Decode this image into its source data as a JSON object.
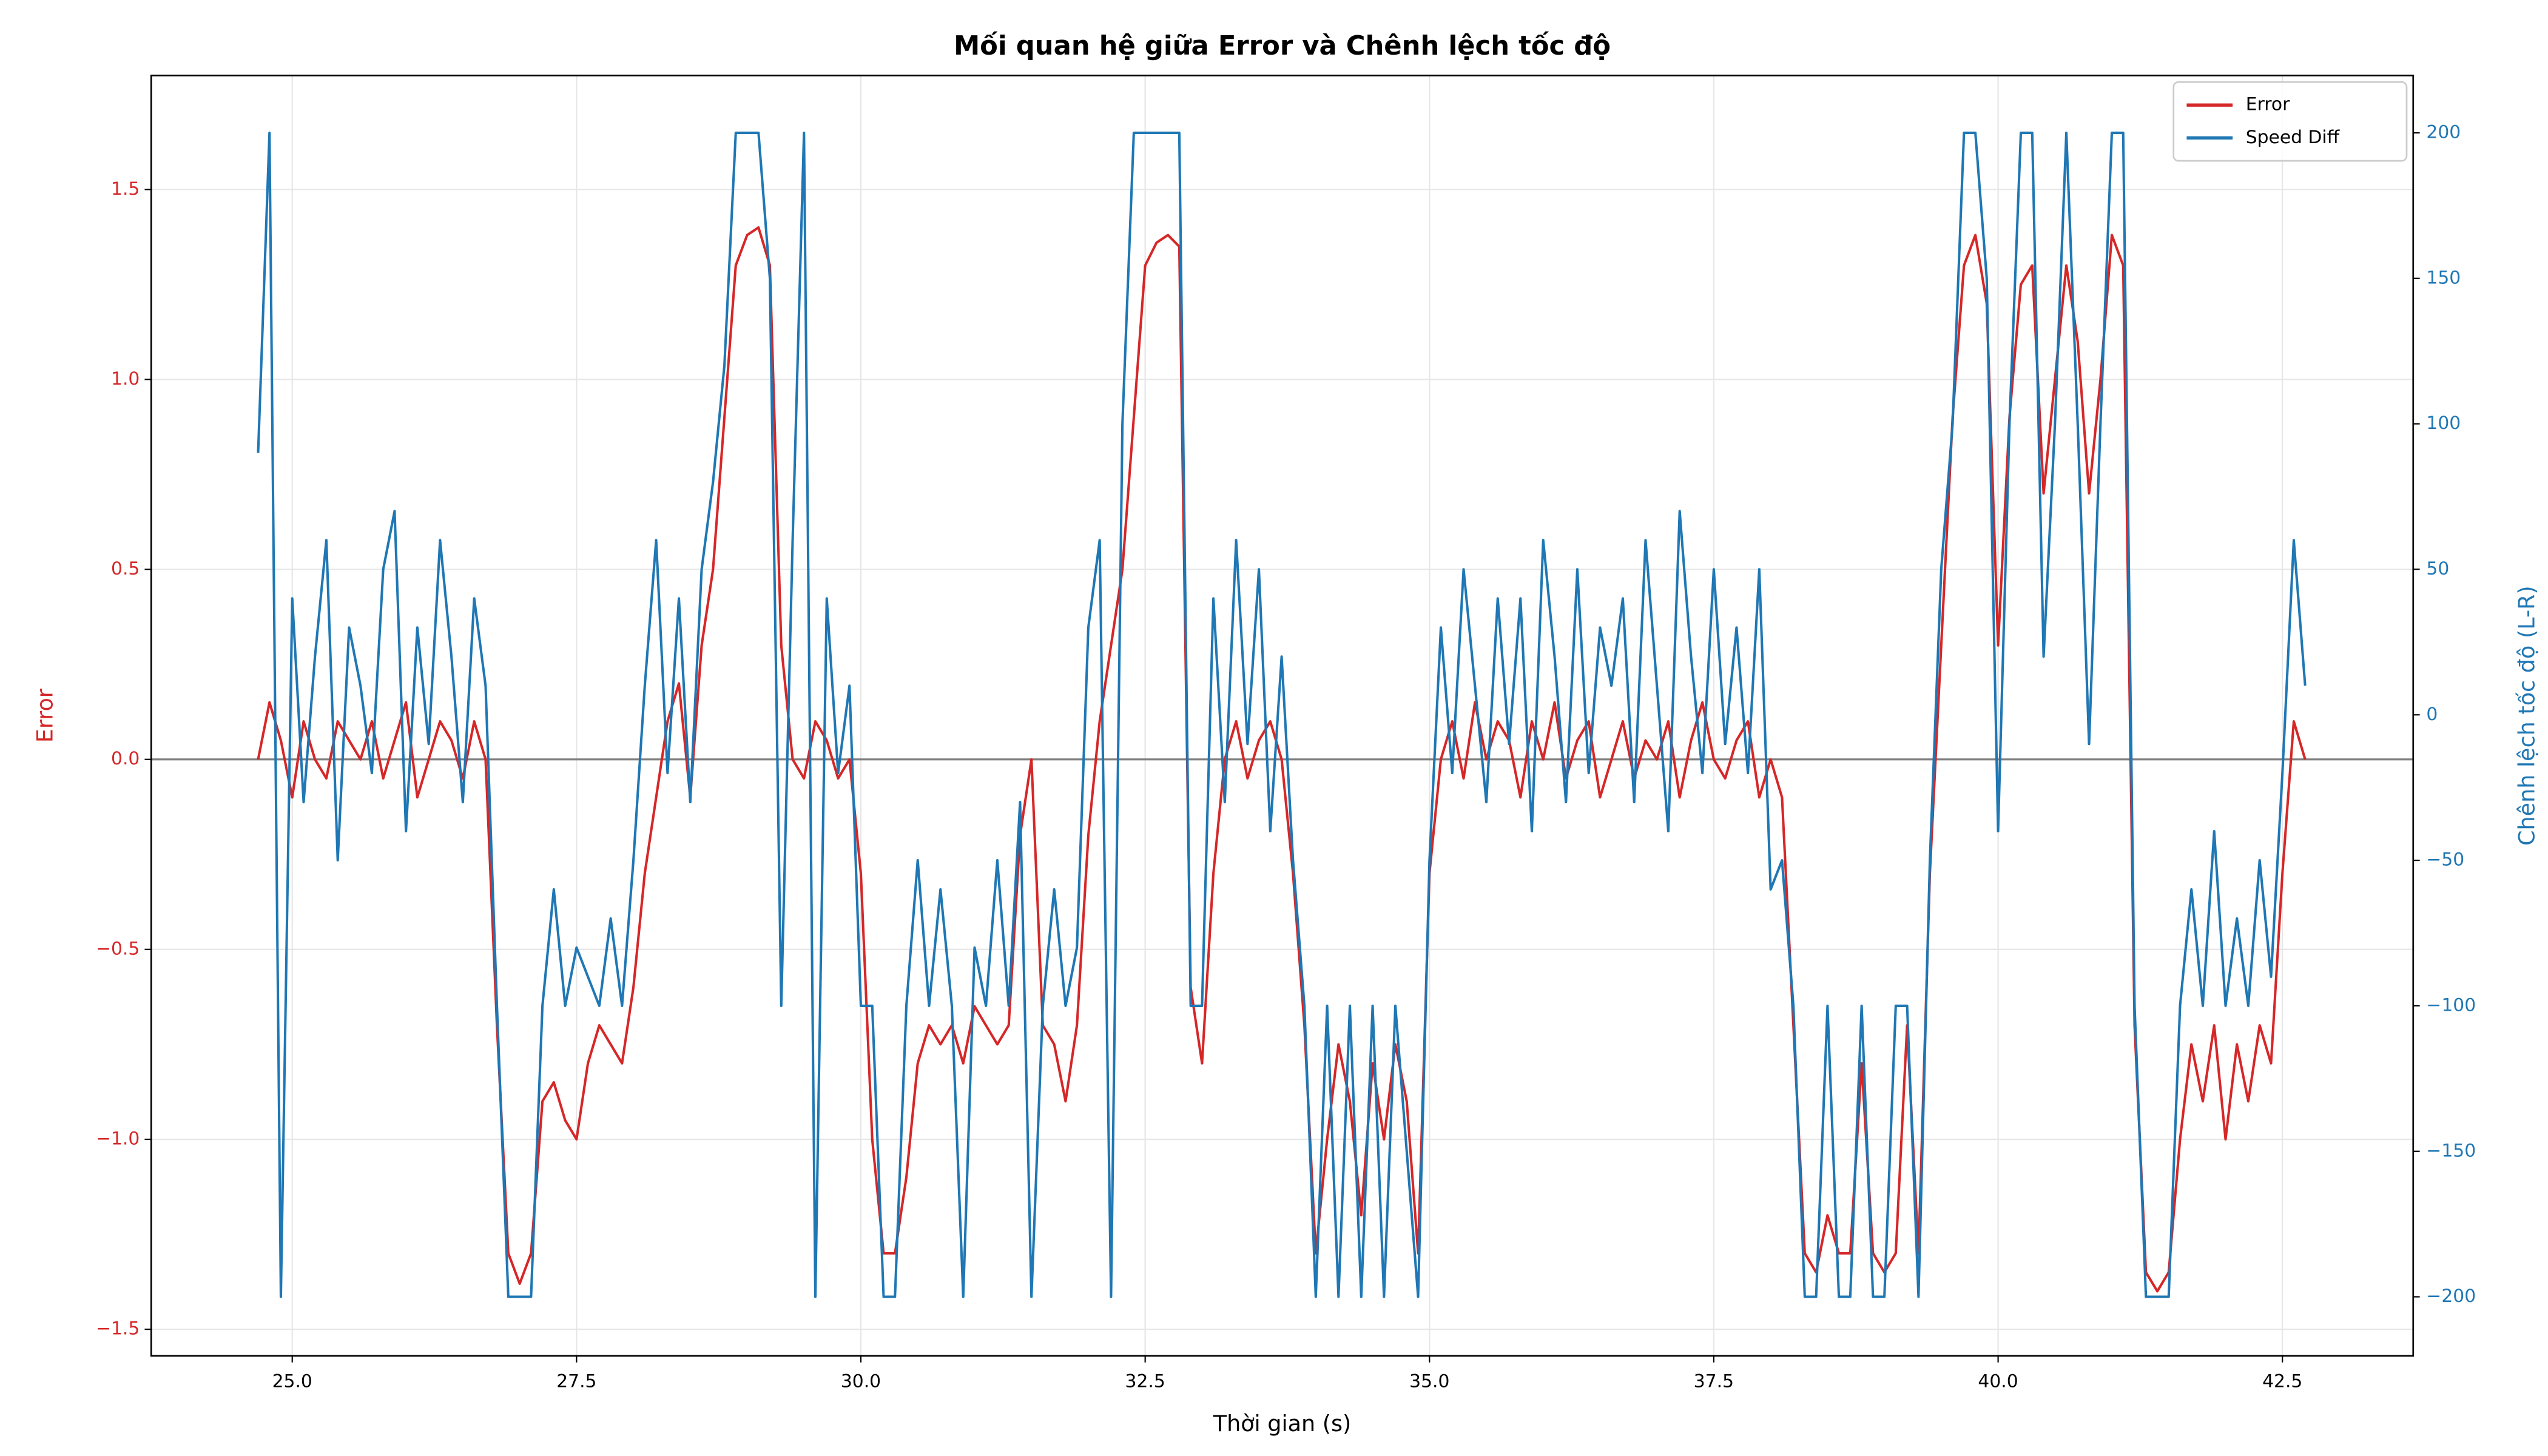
{
  "chart_data": {
    "type": "line",
    "title": "Mối quan hệ giữa Error và Chênh lệch tốc độ",
    "xlabel": "Thời gian (s)",
    "ylabel": "Error",
    "y2label": "Chênh lệch tốc độ (L-R)",
    "x": [
      24.7,
      24.8,
      24.9,
      25.0,
      25.1,
      25.2,
      25.3,
      25.4,
      25.5,
      25.6,
      25.7,
      25.8,
      25.9,
      26.0,
      26.1,
      26.2,
      26.3,
      26.4,
      26.5,
      26.6,
      26.7,
      26.8,
      26.9,
      27.0,
      27.1,
      27.2,
      27.3,
      27.4,
      27.5,
      27.6,
      27.7,
      27.8,
      27.9,
      28.0,
      28.1,
      28.2,
      28.3,
      28.4,
      28.5,
      28.6,
      28.7,
      28.8,
      28.9,
      29.0,
      29.1,
      29.2,
      29.3,
      29.4,
      29.5,
      29.6,
      29.7,
      29.8,
      29.9,
      30.0,
      30.1,
      30.2,
      30.3,
      30.4,
      30.5,
      30.6,
      30.7,
      30.8,
      30.9,
      31.0,
      31.1,
      31.2,
      31.3,
      31.4,
      31.5,
      31.6,
      31.7,
      31.8,
      31.9,
      32.0,
      32.1,
      32.2,
      32.3,
      32.4,
      32.5,
      32.6,
      32.7,
      32.8,
      32.9,
      33.0,
      33.1,
      33.2,
      33.3,
      33.4,
      33.5,
      33.6,
      33.7,
      33.8,
      33.9,
      34.0,
      34.1,
      34.2,
      34.3,
      34.4,
      34.5,
      34.6,
      34.7,
      34.8,
      34.9,
      35.0,
      35.1,
      35.2,
      35.3,
      35.4,
      35.5,
      35.6,
      35.7,
      35.8,
      35.9,
      36.0,
      36.1,
      36.2,
      36.3,
      36.4,
      36.5,
      36.6,
      36.7,
      36.8,
      36.9,
      37.0,
      37.1,
      37.2,
      37.3,
      37.4,
      37.5,
      37.6,
      37.7,
      37.8,
      37.9,
      38.0,
      38.1,
      38.2,
      38.3,
      38.4,
      38.5,
      38.6,
      38.7,
      38.8,
      38.9,
      39.0,
      39.1,
      39.2,
      39.3,
      39.4,
      39.5,
      39.6,
      39.7,
      39.8,
      39.9,
      40.0,
      40.1,
      40.2,
      40.3,
      40.4,
      40.5,
      40.6,
      40.7,
      40.8,
      40.9,
      41.0,
      41.1,
      41.2,
      41.3,
      41.4,
      41.5,
      41.6,
      41.7,
      41.8,
      41.9,
      42.0,
      42.1,
      42.2,
      42.3,
      42.4,
      42.5,
      42.6,
      42.7
    ],
    "series": [
      {
        "name": "Error",
        "color": "#d62728",
        "axis": "y",
        "values": [
          0.0,
          0.15,
          0.05,
          -0.1,
          0.1,
          0.0,
          -0.05,
          0.1,
          0.05,
          0.0,
          0.1,
          -0.05,
          0.05,
          0.15,
          -0.1,
          0.0,
          0.1,
          0.05,
          -0.05,
          0.1,
          0.0,
          -0.7,
          -1.3,
          -1.38,
          -1.3,
          -0.9,
          -0.85,
          -0.95,
          -1.0,
          -0.8,
          -0.7,
          -0.75,
          -0.8,
          -0.6,
          -0.3,
          -0.1,
          0.1,
          0.2,
          -0.1,
          0.3,
          0.5,
          0.9,
          1.3,
          1.38,
          1.4,
          1.3,
          0.3,
          0.0,
          -0.05,
          0.1,
          0.05,
          -0.05,
          0.0,
          -0.3,
          -1.0,
          -1.3,
          -1.3,
          -1.1,
          -0.8,
          -0.7,
          -0.75,
          -0.7,
          -0.8,
          -0.65,
          -0.7,
          -0.75,
          -0.7,
          -0.2,
          0.0,
          -0.7,
          -0.75,
          -0.9,
          -0.7,
          -0.2,
          0.1,
          0.3,
          0.5,
          0.9,
          1.3,
          1.36,
          1.38,
          1.35,
          -0.6,
          -0.8,
          -0.3,
          0.0,
          0.1,
          -0.05,
          0.05,
          0.1,
          0.0,
          -0.3,
          -0.7,
          -1.3,
          -1.0,
          -0.75,
          -0.9,
          -1.2,
          -0.8,
          -1.0,
          -0.75,
          -0.9,
          -1.3,
          -0.3,
          0.0,
          0.1,
          -0.05,
          0.15,
          0.0,
          0.1,
          0.05,
          -0.1,
          0.1,
          0.0,
          0.15,
          -0.05,
          0.05,
          0.1,
          -0.1,
          0.0,
          0.1,
          -0.05,
          0.05,
          0.0,
          0.1,
          -0.1,
          0.05,
          0.15,
          0.0,
          -0.05,
          0.05,
          0.1,
          -0.1,
          0.0,
          -0.1,
          -0.7,
          -1.3,
          -1.35,
          -1.2,
          -1.3,
          -1.3,
          -0.8,
          -1.3,
          -1.35,
          -1.3,
          -0.7,
          -1.3,
          -0.3,
          0.3,
          0.9,
          1.3,
          1.38,
          1.2,
          0.3,
          0.9,
          1.25,
          1.3,
          0.7,
          1.0,
          1.3,
          1.1,
          0.7,
          1.0,
          1.38,
          1.3,
          -0.7,
          -1.35,
          -1.4,
          -1.35,
          -1.0,
          -0.75,
          -0.9,
          -0.7,
          -1.0,
          -0.75,
          -0.9,
          -0.7,
          -0.8,
          -0.3,
          0.1,
          0.0
        ]
      },
      {
        "name": "Speed Diff",
        "color": "#1f77b4",
        "axis": "y2",
        "values": [
          90,
          200,
          -200,
          40,
          -30,
          20,
          60,
          -50,
          30,
          10,
          -20,
          50,
          70,
          -40,
          30,
          -10,
          60,
          20,
          -30,
          40,
          10,
          -100,
          -200,
          -200,
          -200,
          -100,
          -60,
          -100,
          -80,
          -90,
          -100,
          -70,
          -100,
          -50,
          10,
          60,
          -20,
          40,
          -30,
          50,
          80,
          120,
          200,
          200,
          200,
          150,
          -100,
          60,
          200,
          -200,
          40,
          -20,
          10,
          -100,
          -100,
          -200,
          -200,
          -100,
          -50,
          -100,
          -60,
          -100,
          -200,
          -80,
          -100,
          -50,
          -100,
          -30,
          -200,
          -100,
          -60,
          -100,
          -80,
          30,
          60,
          -200,
          100,
          200,
          200,
          200,
          200,
          200,
          -100,
          -100,
          40,
          -30,
          60,
          -10,
          50,
          -40,
          20,
          -50,
          -100,
          -200,
          -100,
          -200,
          -100,
          -200,
          -100,
          -200,
          -100,
          -150,
          -200,
          -50,
          30,
          -20,
          50,
          10,
          -30,
          40,
          -10,
          40,
          -40,
          60,
          20,
          -30,
          50,
          -20,
          30,
          10,
          40,
          -30,
          60,
          10,
          -40,
          70,
          20,
          -20,
          50,
          -10,
          30,
          -20,
          50,
          -60,
          -50,
          -100,
          -200,
          -200,
          -100,
          -200,
          -200,
          -100,
          -200,
          -200,
          -100,
          -100,
          -200,
          -50,
          50,
          100,
          200,
          200,
          150,
          -40,
          100,
          200,
          200,
          20,
          100,
          200,
          100,
          -10,
          100,
          200,
          200,
          -100,
          -200,
          -200,
          -200,
          -100,
          -60,
          -100,
          -40,
          -100,
          -70,
          -100,
          -50,
          -90,
          -20,
          60,
          10
        ]
      }
    ],
    "xlim": [
      23.76,
      43.65
    ],
    "xticks": [
      {
        "value": 25,
        "label": "25.0"
      },
      {
        "value": 27.5,
        "label": "27.5"
      },
      {
        "value": 30,
        "label": "30.0"
      },
      {
        "value": 32.5,
        "label": "32.5"
      },
      {
        "value": 35,
        "label": "35.0"
      },
      {
        "value": 37.5,
        "label": "37.5"
      },
      {
        "value": 40,
        "label": "40.0"
      },
      {
        "value": 42.5,
        "label": "42.5"
      }
    ],
    "ylim": [
      -1.57,
      1.8
    ],
    "yticks": [
      {
        "value": -1.5,
        "label": "−1.5"
      },
      {
        "value": -1,
        "label": "−1.0"
      },
      {
        "value": -0.5,
        "label": "−0.5"
      },
      {
        "value": 0,
        "label": "0.0"
      },
      {
        "value": 0.5,
        "label": "0.5"
      },
      {
        "value": 1,
        "label": "1.0"
      },
      {
        "value": 1.5,
        "label": "1.5"
      }
    ],
    "y2lim": [
      -220.3,
      219.7
    ],
    "y2ticks": [
      {
        "value": -200,
        "label": "−200"
      },
      {
        "value": -150,
        "label": "−150"
      },
      {
        "value": -100,
        "label": "−100"
      },
      {
        "value": -50,
        "label": "−50"
      },
      0,
      50,
      100,
      150,
      200
    ],
    "hline": 0,
    "grid": true,
    "legend": "upper right"
  }
}
